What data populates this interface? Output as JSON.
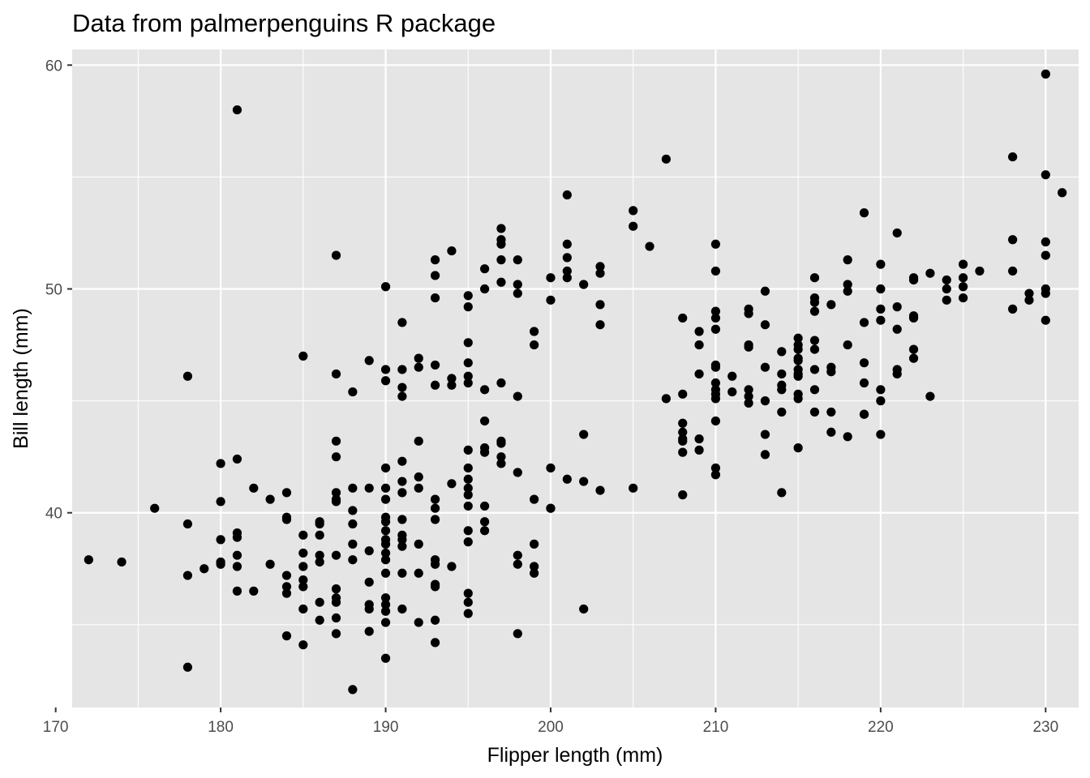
{
  "chart_data": {
    "type": "scatter",
    "title": "Data from palmerpenguins R package",
    "xlabel": "Flipper length (mm)",
    "ylabel": "Bill length (mm)",
    "xlim": [
      171,
      232
    ],
    "ylim": [
      31.3,
      60.7
    ],
    "xticks": [
      170,
      180,
      190,
      200,
      210,
      220,
      230
    ],
    "yticks": [
      40,
      50,
      60
    ],
    "grid": true,
    "point_color": "#000000",
    "panel_color": "#e5e5e5",
    "grid_color": "#ffffff",
    "points": [
      [
        172,
        37.9
      ],
      [
        174,
        37.8
      ],
      [
        176,
        40.2
      ],
      [
        178,
        46.1
      ],
      [
        178,
        39.5
      ],
      [
        178,
        37.2
      ],
      [
        178,
        33.1
      ],
      [
        179,
        37.5
      ],
      [
        180,
        42.2
      ],
      [
        180,
        40.5
      ],
      [
        180,
        38.8
      ],
      [
        180,
        37.8
      ],
      [
        180,
        37.7
      ],
      [
        181,
        58.0
      ],
      [
        181,
        42.4
      ],
      [
        181,
        39.1
      ],
      [
        181,
        38.9
      ],
      [
        181,
        38.1
      ],
      [
        181,
        37.6
      ],
      [
        181,
        36.5
      ],
      [
        182,
        41.1
      ],
      [
        182,
        36.5
      ],
      [
        183,
        40.6
      ],
      [
        183,
        37.7
      ],
      [
        184,
        40.9
      ],
      [
        184,
        39.8
      ],
      [
        184,
        39.7
      ],
      [
        184,
        37.2
      ],
      [
        184,
        36.7
      ],
      [
        184,
        36.4
      ],
      [
        184,
        34.5
      ],
      [
        185,
        47.0
      ],
      [
        185,
        39.0
      ],
      [
        185,
        38.2
      ],
      [
        185,
        37.6
      ],
      [
        185,
        37.0
      ],
      [
        185,
        36.7
      ],
      [
        185,
        35.7
      ],
      [
        185,
        34.1
      ],
      [
        186,
        39.6
      ],
      [
        186,
        39.5
      ],
      [
        186,
        39.0
      ],
      [
        186,
        38.1
      ],
      [
        186,
        37.8
      ],
      [
        186,
        36.0
      ],
      [
        186,
        35.2
      ],
      [
        187,
        51.5
      ],
      [
        187,
        46.2
      ],
      [
        187,
        43.2
      ],
      [
        187,
        42.5
      ],
      [
        187,
        40.9
      ],
      [
        187,
        40.6
      ],
      [
        187,
        40.5
      ],
      [
        187,
        38.1
      ],
      [
        187,
        36.6
      ],
      [
        187,
        36.2
      ],
      [
        187,
        36.0
      ],
      [
        187,
        35.3
      ],
      [
        187,
        34.6
      ],
      [
        188,
        45.4
      ],
      [
        188,
        41.1
      ],
      [
        188,
        40.1
      ],
      [
        188,
        39.5
      ],
      [
        188,
        38.6
      ],
      [
        188,
        37.9
      ],
      [
        188,
        32.1
      ],
      [
        189,
        46.8
      ],
      [
        189,
        41.1
      ],
      [
        189,
        38.3
      ],
      [
        189,
        36.9
      ],
      [
        189,
        35.9
      ],
      [
        189,
        35.7
      ],
      [
        189,
        34.7
      ],
      [
        190,
        50.1
      ],
      [
        190,
        46.4
      ],
      [
        190,
        45.9
      ],
      [
        190,
        42.0
      ],
      [
        190,
        41.1
      ],
      [
        190,
        40.6
      ],
      [
        190,
        39.8
      ],
      [
        190,
        39.6
      ],
      [
        190,
        39.2
      ],
      [
        190,
        38.8
      ],
      [
        190,
        38.6
      ],
      [
        190,
        38.2
      ],
      [
        190,
        37.9
      ],
      [
        190,
        37.3
      ],
      [
        190,
        36.2
      ],
      [
        190,
        35.9
      ],
      [
        190,
        35.6
      ],
      [
        190,
        35.1
      ],
      [
        190,
        33.5
      ],
      [
        191,
        48.5
      ],
      [
        191,
        46.4
      ],
      [
        191,
        45.6
      ],
      [
        191,
        45.2
      ],
      [
        191,
        42.3
      ],
      [
        191,
        41.4
      ],
      [
        191,
        40.9
      ],
      [
        191,
        39.7
      ],
      [
        191,
        39.0
      ],
      [
        191,
        38.8
      ],
      [
        191,
        38.5
      ],
      [
        191,
        37.3
      ],
      [
        191,
        35.7
      ],
      [
        192,
        46.9
      ],
      [
        192,
        46.5
      ],
      [
        192,
        43.2
      ],
      [
        192,
        41.6
      ],
      [
        192,
        41.1
      ],
      [
        192,
        38.6
      ],
      [
        192,
        37.3
      ],
      [
        192,
        35.1
      ],
      [
        193,
        51.3
      ],
      [
        193,
        50.6
      ],
      [
        193,
        49.6
      ],
      [
        193,
        46.6
      ],
      [
        193,
        45.7
      ],
      [
        193,
        40.6
      ],
      [
        193,
        40.2
      ],
      [
        193,
        39.7
      ],
      [
        193,
        37.9
      ],
      [
        193,
        37.7
      ],
      [
        193,
        36.8
      ],
      [
        193,
        36.7
      ],
      [
        193,
        35.2
      ],
      [
        193,
        34.2
      ],
      [
        194,
        51.7
      ],
      [
        194,
        46.0
      ],
      [
        194,
        45.7
      ],
      [
        194,
        41.3
      ],
      [
        194,
        37.6
      ],
      [
        195,
        49.7
      ],
      [
        195,
        49.2
      ],
      [
        195,
        47.6
      ],
      [
        195,
        46.7
      ],
      [
        195,
        46.1
      ],
      [
        195,
        45.8
      ],
      [
        195,
        42.8
      ],
      [
        195,
        42.0
      ],
      [
        195,
        41.5
      ],
      [
        195,
        41.1
      ],
      [
        195,
        40.8
      ],
      [
        195,
        40.3
      ],
      [
        195,
        39.2
      ],
      [
        195,
        38.7
      ],
      [
        195,
        36.4
      ],
      [
        195,
        36.0
      ],
      [
        195,
        35.5
      ],
      [
        196,
        50.9
      ],
      [
        196,
        50.0
      ],
      [
        196,
        45.5
      ],
      [
        196,
        44.1
      ],
      [
        196,
        42.9
      ],
      [
        196,
        42.7
      ],
      [
        196,
        40.3
      ],
      [
        196,
        39.6
      ],
      [
        196,
        39.2
      ],
      [
        197,
        52.7
      ],
      [
        197,
        52.2
      ],
      [
        197,
        52.0
      ],
      [
        197,
        51.3
      ],
      [
        197,
        50.3
      ],
      [
        197,
        45.8
      ],
      [
        197,
        43.2
      ],
      [
        197,
        43.1
      ],
      [
        197,
        42.5
      ],
      [
        197,
        42.2
      ],
      [
        198,
        51.3
      ],
      [
        198,
        50.2
      ],
      [
        198,
        49.8
      ],
      [
        198,
        45.2
      ],
      [
        198,
        41.8
      ],
      [
        198,
        38.1
      ],
      [
        198,
        37.7
      ],
      [
        198,
        34.6
      ],
      [
        199,
        48.1
      ],
      [
        199,
        47.5
      ],
      [
        199,
        40.6
      ],
      [
        199,
        38.6
      ],
      [
        199,
        37.6
      ],
      [
        199,
        37.3
      ],
      [
        200,
        50.5
      ],
      [
        200,
        49.5
      ],
      [
        200,
        42.0
      ],
      [
        200,
        40.2
      ],
      [
        200,
        40.2
      ],
      [
        201,
        54.2
      ],
      [
        201,
        52.0
      ],
      [
        201,
        51.4
      ],
      [
        201,
        50.8
      ],
      [
        201,
        50.5
      ],
      [
        201,
        41.5
      ],
      [
        202,
        50.2
      ],
      [
        202,
        43.5
      ],
      [
        202,
        41.4
      ],
      [
        202,
        35.7
      ],
      [
        203,
        51.0
      ],
      [
        203,
        50.7
      ],
      [
        203,
        49.3
      ],
      [
        203,
        48.4
      ],
      [
        203,
        41.0
      ],
      [
        205,
        53.5
      ],
      [
        205,
        52.8
      ],
      [
        205,
        41.1
      ],
      [
        206,
        51.9
      ],
      [
        207,
        55.8
      ],
      [
        207,
        45.1
      ],
      [
        208,
        48.7
      ],
      [
        208,
        45.3
      ],
      [
        208,
        44.0
      ],
      [
        208,
        43.6
      ],
      [
        208,
        43.3
      ],
      [
        208,
        43.2
      ],
      [
        208,
        42.7
      ],
      [
        208,
        40.8
      ],
      [
        209,
        48.1
      ],
      [
        209,
        47.5
      ],
      [
        209,
        46.2
      ],
      [
        209,
        43.3
      ],
      [
        209,
        42.8
      ],
      [
        210,
        52.0
      ],
      [
        210,
        50.8
      ],
      [
        210,
        49.0
      ],
      [
        210,
        48.7
      ],
      [
        210,
        48.2
      ],
      [
        210,
        46.6
      ],
      [
        210,
        46.5
      ],
      [
        210,
        45.8
      ],
      [
        210,
        45.5
      ],
      [
        210,
        45.3
      ],
      [
        210,
        45.1
      ],
      [
        210,
        44.1
      ],
      [
        210,
        42.0
      ],
      [
        210,
        41.7
      ],
      [
        211,
        46.1
      ],
      [
        211,
        45.4
      ],
      [
        212,
        49.1
      ],
      [
        212,
        48.9
      ],
      [
        212,
        47.5
      ],
      [
        212,
        47.4
      ],
      [
        212,
        45.5
      ],
      [
        212,
        45.2
      ],
      [
        212,
        44.9
      ],
      [
        213,
        49.9
      ],
      [
        213,
        48.4
      ],
      [
        213,
        46.5
      ],
      [
        213,
        45.0
      ],
      [
        213,
        43.5
      ],
      [
        213,
        42.6
      ],
      [
        214,
        47.2
      ],
      [
        214,
        46.2
      ],
      [
        214,
        45.7
      ],
      [
        214,
        45.5
      ],
      [
        214,
        44.5
      ],
      [
        214,
        40.9
      ],
      [
        215,
        47.8
      ],
      [
        215,
        47.5
      ],
      [
        215,
        47.3
      ],
      [
        215,
        46.9
      ],
      [
        215,
        46.8
      ],
      [
        215,
        46.4
      ],
      [
        215,
        46.2
      ],
      [
        215,
        46.1
      ],
      [
        215,
        45.3
      ],
      [
        215,
        45.1
      ],
      [
        215,
        42.9
      ],
      [
        216,
        50.5
      ],
      [
        216,
        49.6
      ],
      [
        216,
        49.4
      ],
      [
        216,
        49.0
      ],
      [
        216,
        47.7
      ],
      [
        216,
        47.3
      ],
      [
        216,
        46.4
      ],
      [
        216,
        45.5
      ],
      [
        216,
        44.5
      ],
      [
        217,
        49.3
      ],
      [
        217,
        46.5
      ],
      [
        217,
        46.3
      ],
      [
        217,
        44.5
      ],
      [
        217,
        43.6
      ],
      [
        218,
        51.3
      ],
      [
        218,
        50.2
      ],
      [
        218,
        49.9
      ],
      [
        218,
        47.5
      ],
      [
        218,
        43.4
      ],
      [
        219,
        53.4
      ],
      [
        219,
        48.5
      ],
      [
        219,
        46.7
      ],
      [
        219,
        45.8
      ],
      [
        219,
        44.4
      ],
      [
        219,
        44.4
      ],
      [
        220,
        51.1
      ],
      [
        220,
        50.0
      ],
      [
        220,
        49.1
      ],
      [
        220,
        48.6
      ],
      [
        220,
        45.5
      ],
      [
        220,
        45.0
      ],
      [
        220,
        43.5
      ],
      [
        221,
        52.5
      ],
      [
        221,
        49.2
      ],
      [
        221,
        48.2
      ],
      [
        221,
        46.4
      ],
      [
        221,
        46.2
      ],
      [
        222,
        50.5
      ],
      [
        222,
        50.4
      ],
      [
        222,
        48.8
      ],
      [
        222,
        48.7
      ],
      [
        222,
        47.3
      ],
      [
        222,
        46.9
      ],
      [
        223,
        50.7
      ],
      [
        223,
        45.2
      ],
      [
        224,
        50.4
      ],
      [
        224,
        50.0
      ],
      [
        224,
        49.5
      ],
      [
        225,
        51.1
      ],
      [
        225,
        50.5
      ],
      [
        225,
        50.1
      ],
      [
        225,
        49.6
      ],
      [
        226,
        50.8
      ],
      [
        228,
        55.9
      ],
      [
        228,
        52.2
      ],
      [
        228,
        50.8
      ],
      [
        228,
        49.1
      ],
      [
        229,
        49.8
      ],
      [
        229,
        49.5
      ],
      [
        230,
        59.6
      ],
      [
        230,
        55.1
      ],
      [
        230,
        52.1
      ],
      [
        230,
        51.5
      ],
      [
        230,
        50.0
      ],
      [
        230,
        49.8
      ],
      [
        230,
        48.6
      ],
      [
        231,
        54.3
      ]
    ]
  }
}
